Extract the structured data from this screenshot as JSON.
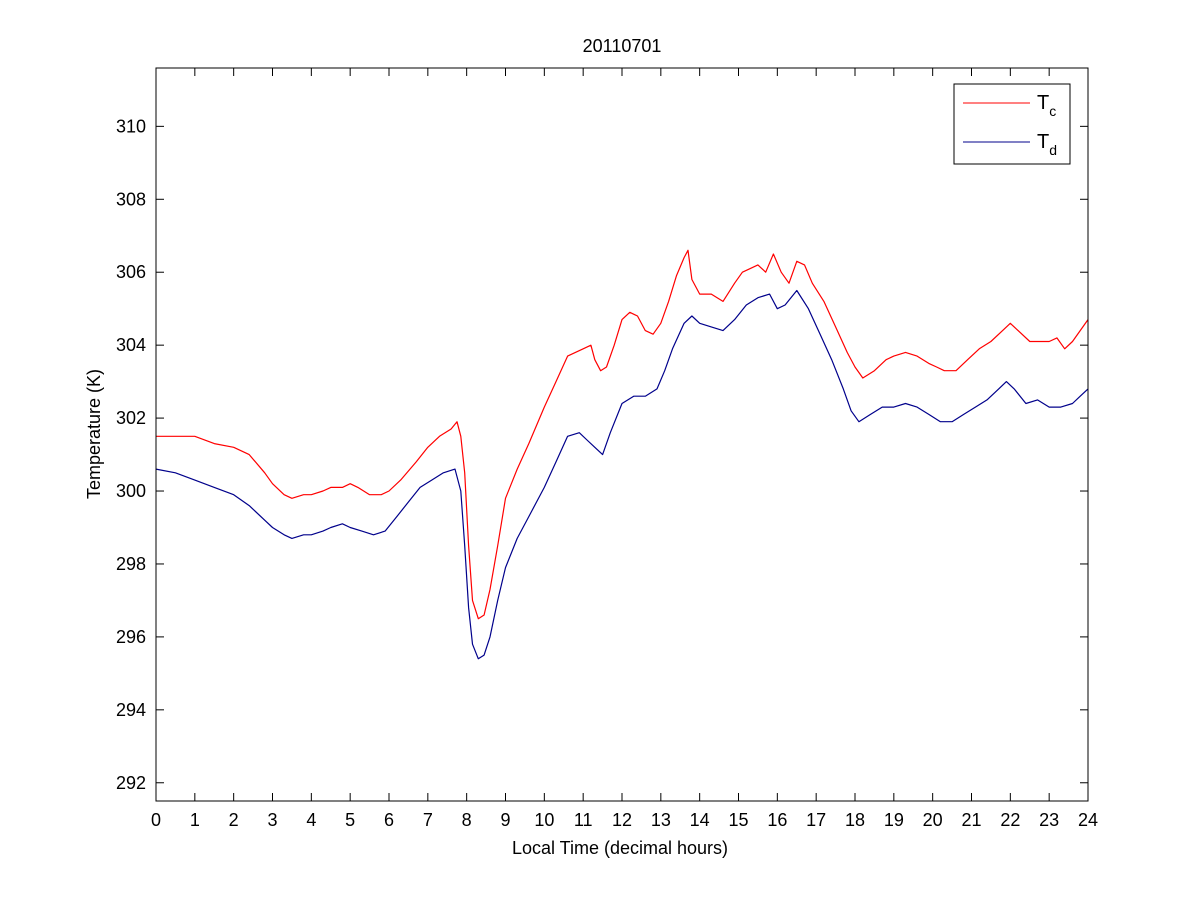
{
  "chart_data": {
    "type": "line",
    "title": "20110701",
    "xlabel": "Local Time (decimal hours)",
    "ylabel": "Temperature (K)",
    "xlim": [
      0,
      24
    ],
    "ylim": [
      291.5,
      311.6
    ],
    "xticks": [
      0,
      1,
      2,
      3,
      4,
      5,
      6,
      7,
      8,
      9,
      10,
      11,
      12,
      13,
      14,
      15,
      16,
      17,
      18,
      19,
      20,
      21,
      22,
      23,
      24
    ],
    "yticks": [
      292,
      294,
      296,
      298,
      300,
      302,
      304,
      306,
      308,
      310
    ],
    "grid": false,
    "legend_position": "top-right",
    "series": [
      {
        "name": "Tc",
        "legend_main": "T",
        "legend_sub": "c",
        "color": "#ff0000",
        "points": [
          [
            0,
            301.5
          ],
          [
            0.5,
            301.5
          ],
          [
            1,
            301.5
          ],
          [
            1.5,
            301.3
          ],
          [
            2,
            301.2
          ],
          [
            2.4,
            301.0
          ],
          [
            2.8,
            300.5
          ],
          [
            3.0,
            300.2
          ],
          [
            3.3,
            299.9
          ],
          [
            3.5,
            299.8
          ],
          [
            3.8,
            299.9
          ],
          [
            4.0,
            299.9
          ],
          [
            4.3,
            300.0
          ],
          [
            4.5,
            300.1
          ],
          [
            4.8,
            300.1
          ],
          [
            5.0,
            300.2
          ],
          [
            5.2,
            300.1
          ],
          [
            5.5,
            299.9
          ],
          [
            5.8,
            299.9
          ],
          [
            6.0,
            300.0
          ],
          [
            6.3,
            300.3
          ],
          [
            6.7,
            300.8
          ],
          [
            7.0,
            301.2
          ],
          [
            7.3,
            301.5
          ],
          [
            7.6,
            301.7
          ],
          [
            7.75,
            301.9
          ],
          [
            7.85,
            301.5
          ],
          [
            7.95,
            300.5
          ],
          [
            8.05,
            298.5
          ],
          [
            8.15,
            297.0
          ],
          [
            8.3,
            296.5
          ],
          [
            8.45,
            296.6
          ],
          [
            8.6,
            297.3
          ],
          [
            8.8,
            298.5
          ],
          [
            9.0,
            299.8
          ],
          [
            9.3,
            300.6
          ],
          [
            9.6,
            301.3
          ],
          [
            10.0,
            302.3
          ],
          [
            10.3,
            303.0
          ],
          [
            10.6,
            303.7
          ],
          [
            11.0,
            303.9
          ],
          [
            11.2,
            304.0
          ],
          [
            11.3,
            303.6
          ],
          [
            11.45,
            303.3
          ],
          [
            11.6,
            303.4
          ],
          [
            11.8,
            304.0
          ],
          [
            12.0,
            304.7
          ],
          [
            12.2,
            304.9
          ],
          [
            12.4,
            304.8
          ],
          [
            12.6,
            304.4
          ],
          [
            12.8,
            304.3
          ],
          [
            13.0,
            304.6
          ],
          [
            13.2,
            305.2
          ],
          [
            13.4,
            305.9
          ],
          [
            13.6,
            306.4
          ],
          [
            13.7,
            306.6
          ],
          [
            13.8,
            305.8
          ],
          [
            14.0,
            305.4
          ],
          [
            14.3,
            305.4
          ],
          [
            14.6,
            305.2
          ],
          [
            14.9,
            305.7
          ],
          [
            15.1,
            306.0
          ],
          [
            15.3,
            306.1
          ],
          [
            15.5,
            306.2
          ],
          [
            15.7,
            306.0
          ],
          [
            15.9,
            306.5
          ],
          [
            16.1,
            306.0
          ],
          [
            16.3,
            305.7
          ],
          [
            16.5,
            306.3
          ],
          [
            16.7,
            306.2
          ],
          [
            16.9,
            305.7
          ],
          [
            17.2,
            305.2
          ],
          [
            17.5,
            304.5
          ],
          [
            17.8,
            303.8
          ],
          [
            18.0,
            303.4
          ],
          [
            18.2,
            303.1
          ],
          [
            18.5,
            303.3
          ],
          [
            18.8,
            303.6
          ],
          [
            19.0,
            303.7
          ],
          [
            19.3,
            303.8
          ],
          [
            19.6,
            303.7
          ],
          [
            19.9,
            303.5
          ],
          [
            20.1,
            303.4
          ],
          [
            20.3,
            303.3
          ],
          [
            20.6,
            303.3
          ],
          [
            20.9,
            303.6
          ],
          [
            21.2,
            303.9
          ],
          [
            21.5,
            304.1
          ],
          [
            21.8,
            304.4
          ],
          [
            22.0,
            304.6
          ],
          [
            22.2,
            304.4
          ],
          [
            22.5,
            304.1
          ],
          [
            22.8,
            304.1
          ],
          [
            23.0,
            304.1
          ],
          [
            23.2,
            304.2
          ],
          [
            23.4,
            303.9
          ],
          [
            23.6,
            304.1
          ],
          [
            23.8,
            304.4
          ],
          [
            24.0,
            304.7
          ]
        ]
      },
      {
        "name": "Td",
        "legend_main": "T",
        "legend_sub": "d",
        "color": "#00008b",
        "points": [
          [
            0,
            300.6
          ],
          [
            0.5,
            300.5
          ],
          [
            1,
            300.3
          ],
          [
            1.5,
            300.1
          ],
          [
            2,
            299.9
          ],
          [
            2.4,
            299.6
          ],
          [
            2.8,
            299.2
          ],
          [
            3.0,
            299.0
          ],
          [
            3.3,
            298.8
          ],
          [
            3.5,
            298.7
          ],
          [
            3.8,
            298.8
          ],
          [
            4.0,
            298.8
          ],
          [
            4.3,
            298.9
          ],
          [
            4.5,
            299.0
          ],
          [
            4.8,
            299.1
          ],
          [
            5.0,
            299.0
          ],
          [
            5.3,
            298.9
          ],
          [
            5.6,
            298.8
          ],
          [
            5.9,
            298.9
          ],
          [
            6.2,
            299.3
          ],
          [
            6.5,
            299.7
          ],
          [
            6.8,
            300.1
          ],
          [
            7.1,
            300.3
          ],
          [
            7.4,
            300.5
          ],
          [
            7.7,
            300.6
          ],
          [
            7.85,
            300.0
          ],
          [
            7.95,
            298.5
          ],
          [
            8.05,
            296.8
          ],
          [
            8.15,
            295.8
          ],
          [
            8.3,
            295.4
          ],
          [
            8.45,
            295.5
          ],
          [
            8.6,
            296.0
          ],
          [
            8.8,
            297.0
          ],
          [
            9.0,
            297.9
          ],
          [
            9.3,
            298.7
          ],
          [
            9.6,
            299.3
          ],
          [
            10.0,
            300.1
          ],
          [
            10.3,
            300.8
          ],
          [
            10.6,
            301.5
          ],
          [
            10.9,
            301.6
          ],
          [
            11.1,
            301.4
          ],
          [
            11.3,
            301.2
          ],
          [
            11.5,
            301.0
          ],
          [
            11.7,
            301.6
          ],
          [
            12.0,
            302.4
          ],
          [
            12.3,
            302.6
          ],
          [
            12.6,
            302.6
          ],
          [
            12.9,
            302.8
          ],
          [
            13.1,
            303.3
          ],
          [
            13.3,
            303.9
          ],
          [
            13.6,
            304.6
          ],
          [
            13.8,
            304.8
          ],
          [
            14.0,
            304.6
          ],
          [
            14.3,
            304.5
          ],
          [
            14.6,
            304.4
          ],
          [
            14.9,
            304.7
          ],
          [
            15.2,
            305.1
          ],
          [
            15.5,
            305.3
          ],
          [
            15.8,
            305.4
          ],
          [
            16.0,
            305.0
          ],
          [
            16.2,
            305.1
          ],
          [
            16.5,
            305.5
          ],
          [
            16.8,
            305.0
          ],
          [
            17.1,
            304.3
          ],
          [
            17.4,
            303.6
          ],
          [
            17.7,
            302.8
          ],
          [
            17.9,
            302.2
          ],
          [
            18.1,
            301.9
          ],
          [
            18.4,
            302.1
          ],
          [
            18.7,
            302.3
          ],
          [
            19.0,
            302.3
          ],
          [
            19.3,
            302.4
          ],
          [
            19.6,
            302.3
          ],
          [
            19.9,
            302.1
          ],
          [
            20.2,
            301.9
          ],
          [
            20.5,
            301.9
          ],
          [
            20.8,
            302.1
          ],
          [
            21.1,
            302.3
          ],
          [
            21.4,
            302.5
          ],
          [
            21.7,
            302.8
          ],
          [
            21.9,
            303.0
          ],
          [
            22.1,
            302.8
          ],
          [
            22.4,
            302.4
          ],
          [
            22.7,
            302.5
          ],
          [
            23.0,
            302.3
          ],
          [
            23.3,
            302.3
          ],
          [
            23.6,
            302.4
          ],
          [
            23.8,
            302.6
          ],
          [
            24.0,
            302.8
          ]
        ]
      }
    ]
  }
}
